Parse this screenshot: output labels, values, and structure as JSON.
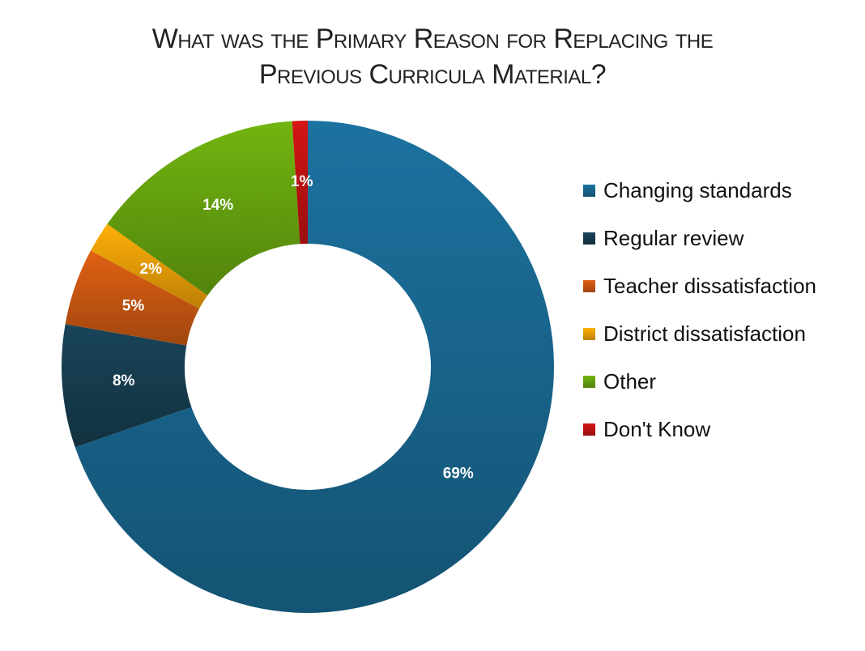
{
  "chart_data": {
    "type": "pie",
    "subtype": "donut",
    "title_lines": [
      "What was the Primary Reason for Replacing the",
      "Previous Curricula Material?"
    ],
    "categories": [
      "Changing standards",
      "Regular review",
      "Teacher dissatisfaction",
      "District dissatisfaction",
      "Other",
      "Don't Know"
    ],
    "values": [
      69,
      8,
      5,
      2,
      14,
      1
    ],
    "data_labels": [
      "69%",
      "8%",
      "5%",
      "2%",
      "14%",
      "1%"
    ],
    "colors": [
      "#1a6a94",
      "#173f52",
      "#cf5a12",
      "#f2a307",
      "#6aa80f",
      "#c51313"
    ],
    "legend_position": "right",
    "start_angle": "12 o'clock",
    "direction": "clockwise"
  }
}
